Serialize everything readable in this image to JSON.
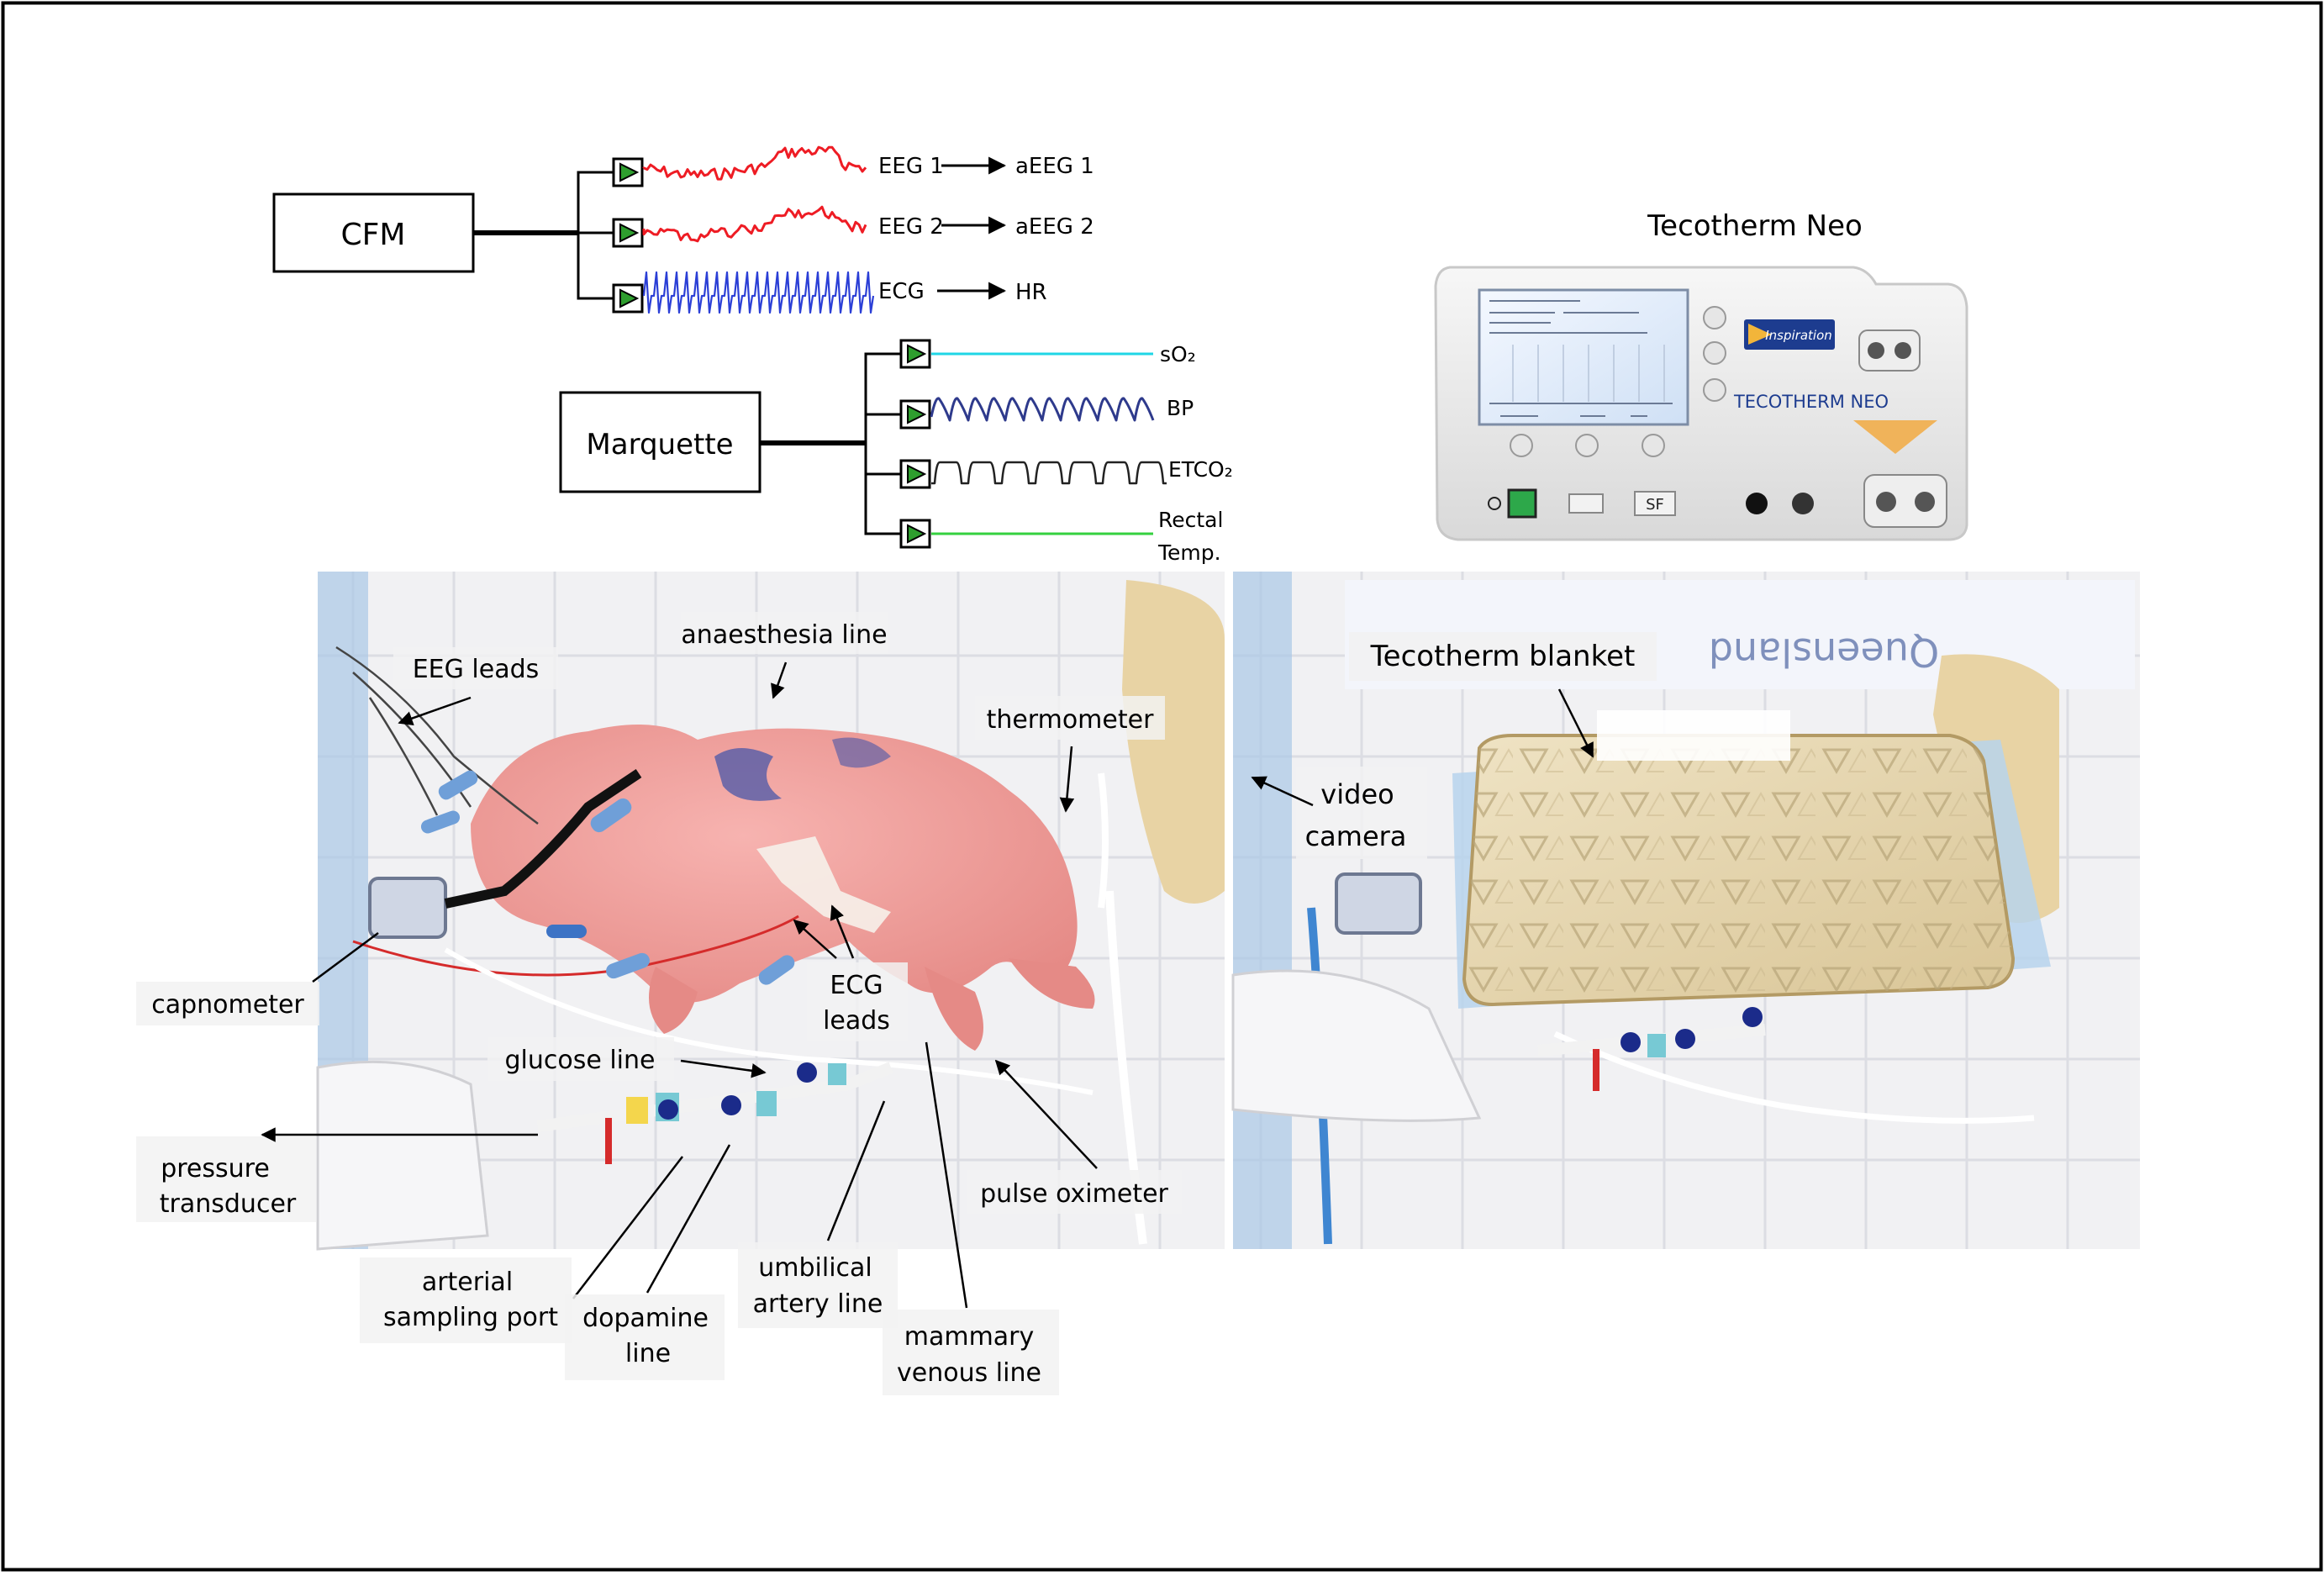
{
  "devices": {
    "cfm": "CFM",
    "marquette": "Marquette",
    "tecotherm_title": "Tecotherm Neo"
  },
  "cfm_channels": [
    {
      "signal": "EEG 1",
      "output": "aEEG 1"
    },
    {
      "signal": "EEG 2",
      "output": "aEEG 2"
    },
    {
      "signal": "ECG",
      "output": "HR"
    }
  ],
  "marquette_channels": {
    "so2": "sO₂",
    "bp": "BP",
    "etco2": "ETCO₂",
    "temp_1": "Rectal",
    "temp_2": "Temp."
  },
  "device_panel": {
    "brand": "Inspiration",
    "model": "TECOTHERM   NEO",
    "sf": "SF"
  },
  "left_photo_labels": {
    "eeg_leads": "EEG leads",
    "anaesthesia_line": "anaesthesia line",
    "thermometer": "thermometer",
    "capnometer": "capnometer",
    "ecg_1": "ECG",
    "ecg_2": "leads",
    "glucose_line": "glucose line",
    "pressure_1": "pressure",
    "pressure_2": "transducer",
    "arterial_1": "arterial",
    "arterial_2": "sampling port",
    "dopamine_1": "dopamine",
    "dopamine_2": "line",
    "umbilical_1": "umbilical",
    "umbilical_2": "artery line",
    "mammary_1": "mammary",
    "mammary_2": "venous line",
    "pulse_oximeter": "pulse oximeter"
  },
  "right_photo_labels": {
    "blanket": "Tecotherm blanket",
    "video_1": "video",
    "video_2": "camera",
    "sheet_text": "Queensland"
  },
  "colors": {
    "eeg": "#ee1c24",
    "ecg": "#2b3fd6",
    "so2": "#1fd6e6",
    "bp": "#2e3a8c",
    "etco2": "#222222",
    "temp": "#35d13f",
    "amp_fill": "#2e9e2e"
  }
}
